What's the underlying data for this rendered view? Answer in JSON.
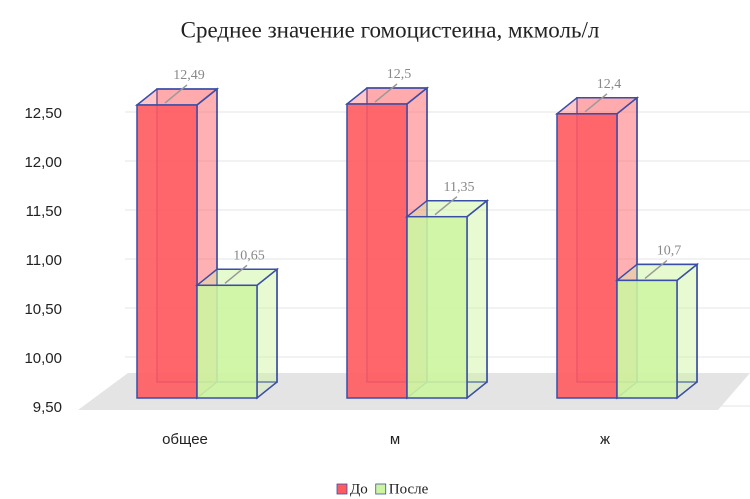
{
  "chart_data": {
    "type": "bar3d",
    "title": "Среднее значение гомоцистеина, мкмоль/л",
    "categories": [
      "общее",
      "м",
      "ж"
    ],
    "series": [
      {
        "name": "До",
        "color": "#ff5a5f",
        "values": [
          12.49,
          12.5,
          12.4
        ],
        "value_labels": [
          "12,49",
          "12,5",
          "12,4"
        ]
      },
      {
        "name": "После",
        "color": "#cdf5a0",
        "values": [
          10.65,
          11.35,
          10.7
        ],
        "value_labels": [
          "10,65",
          "11,35",
          "10,7"
        ]
      }
    ],
    "ylim": [
      9.5,
      12.5
    ],
    "yticks": [
      {
        "value": 9.5,
        "label": "9,50"
      },
      {
        "value": 10,
        "label": "10,00"
      },
      {
        "value": 10.5,
        "label": "10,50"
      },
      {
        "value": 11,
        "label": "11,00"
      },
      {
        "value": 11.5,
        "label": "11,50"
      },
      {
        "value": 12,
        "label": "12,00"
      },
      {
        "value": 12.5,
        "label": "12,50"
      }
    ],
    "grid": true,
    "legend": "bottom"
  }
}
